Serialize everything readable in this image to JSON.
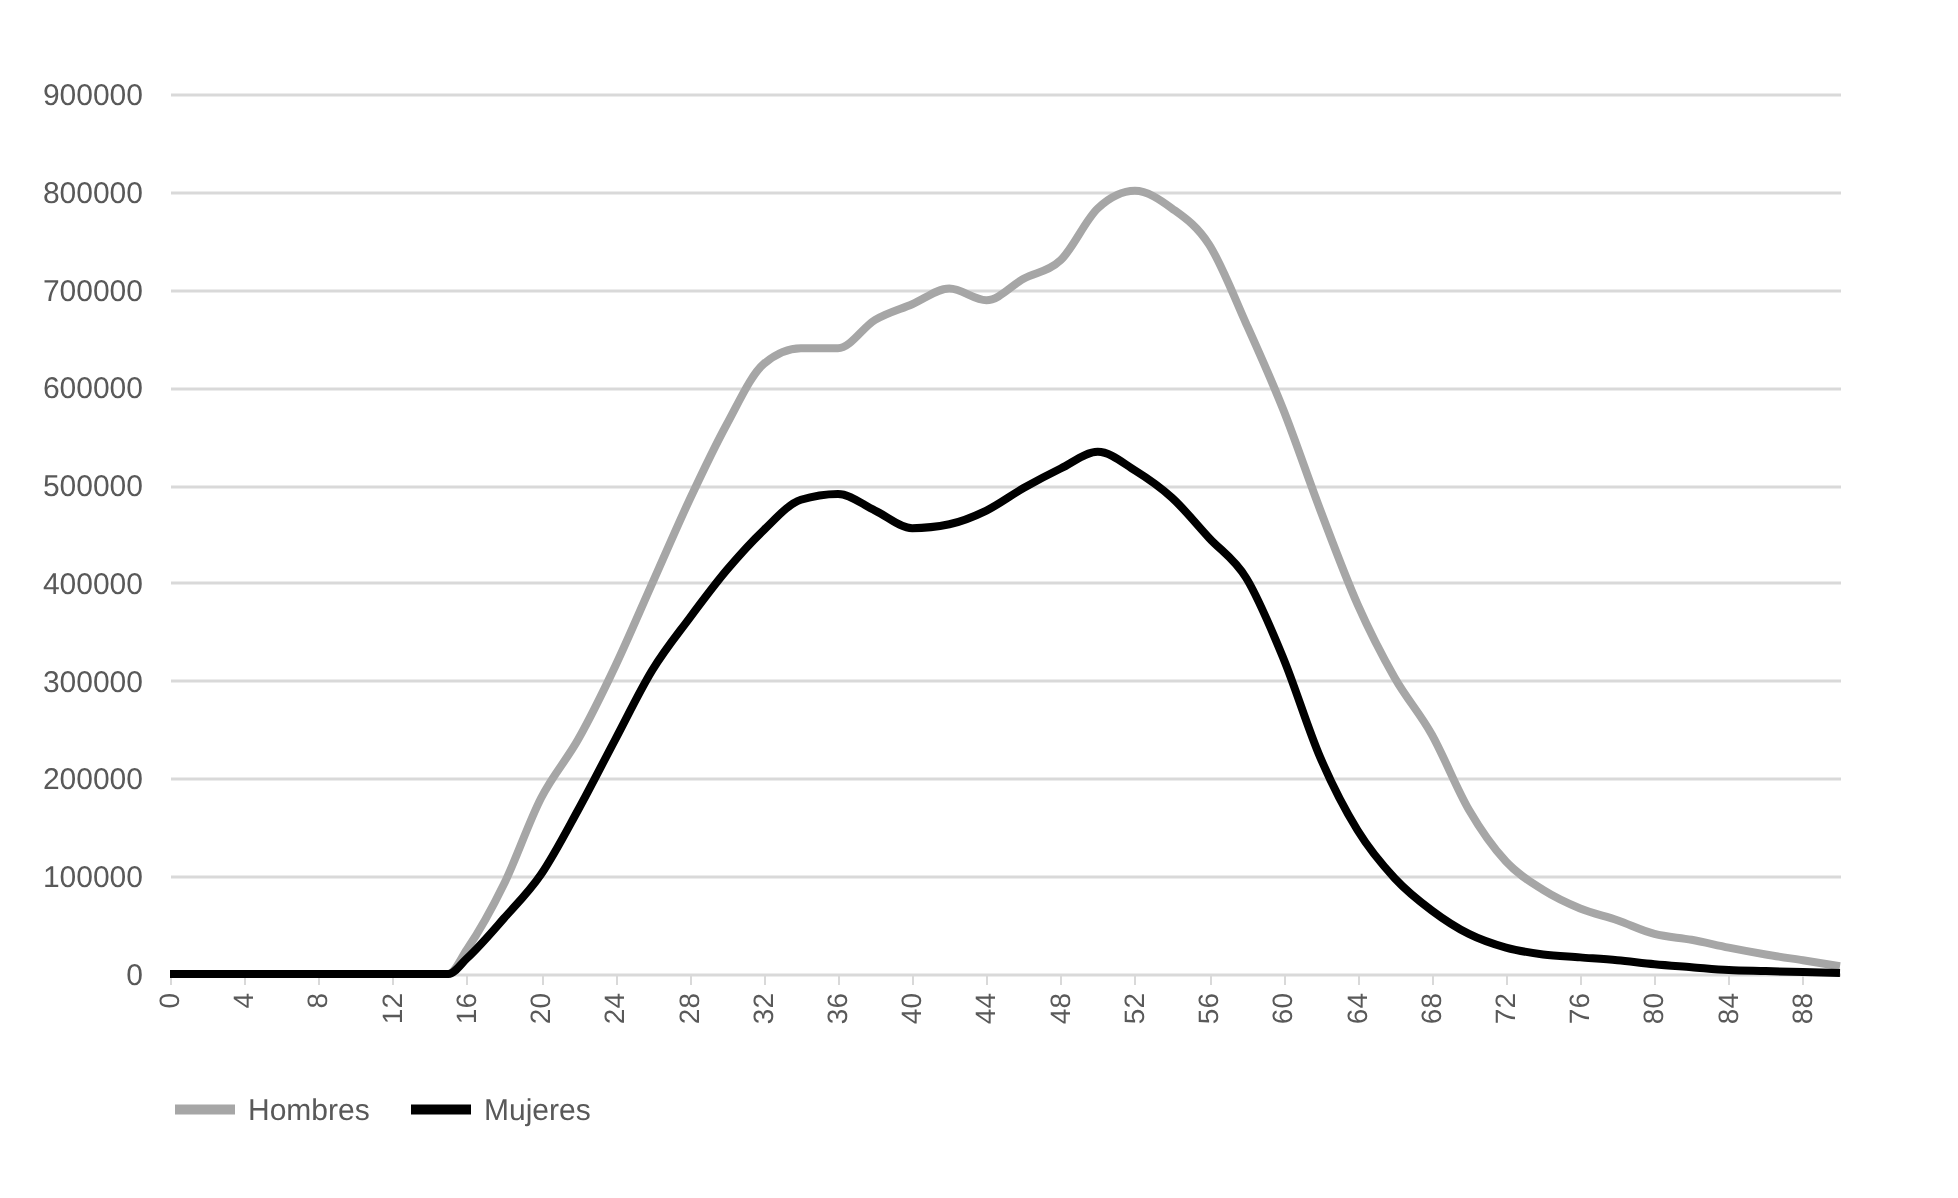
{
  "chart_data": {
    "type": "line",
    "x": [
      0,
      14,
      15,
      16,
      18,
      20,
      22,
      24,
      26,
      28,
      30,
      32,
      34,
      36,
      38,
      40,
      42,
      44,
      46,
      48,
      50,
      52,
      54,
      56,
      58,
      60,
      62,
      64,
      66,
      68,
      70,
      72,
      74,
      76,
      78,
      80,
      82,
      84,
      86,
      88,
      90
    ],
    "series": [
      {
        "name": "Hombres",
        "color": "#a6a6a6",
        "values": [
          0,
          0,
          0,
          25000,
          92000,
          180000,
          240000,
          315000,
          400000,
          485000,
          562000,
          624000,
          640000,
          640000,
          669000,
          685000,
          701000,
          689000,
          711000,
          730000,
          783000,
          801000,
          783000,
          746000,
          665000,
          577000,
          474000,
          378000,
          303000,
          245000,
          168000,
          115000,
          86000,
          67000,
          55000,
          41000,
          35000,
          27000,
          20000,
          14000,
          8000
        ]
      },
      {
        "name": "Mujeres",
        "color": "#000000",
        "values": [
          0,
          0,
          0,
          16000,
          57000,
          102000,
          168000,
          240000,
          311000,
          364000,
          413000,
          454000,
          485000,
          491000,
          474000,
          456000,
          460000,
          474000,
          497000,
          517000,
          534000,
          515000,
          487000,
          446000,
          405000,
          323000,
          221000,
          147000,
          98000,
          65000,
          41000,
          27000,
          20000,
          17000,
          14000,
          10000,
          7000,
          4000,
          3000,
          2000,
          1000
        ]
      }
    ],
    "xlim": [
      0,
      90
    ],
    "xticks": [
      0,
      4,
      8,
      12,
      16,
      20,
      24,
      28,
      32,
      36,
      40,
      44,
      48,
      52,
      56,
      60,
      64,
      68,
      72,
      76,
      80,
      84,
      88
    ],
    "ylim": [
      0,
      900000
    ],
    "yticks": [
      0,
      100000,
      200000,
      300000,
      400000,
      500000,
      600000,
      700000,
      800000,
      900000
    ],
    "grid": "y",
    "legend": "bottom",
    "marker": "none",
    "line_style": "solid"
  }
}
